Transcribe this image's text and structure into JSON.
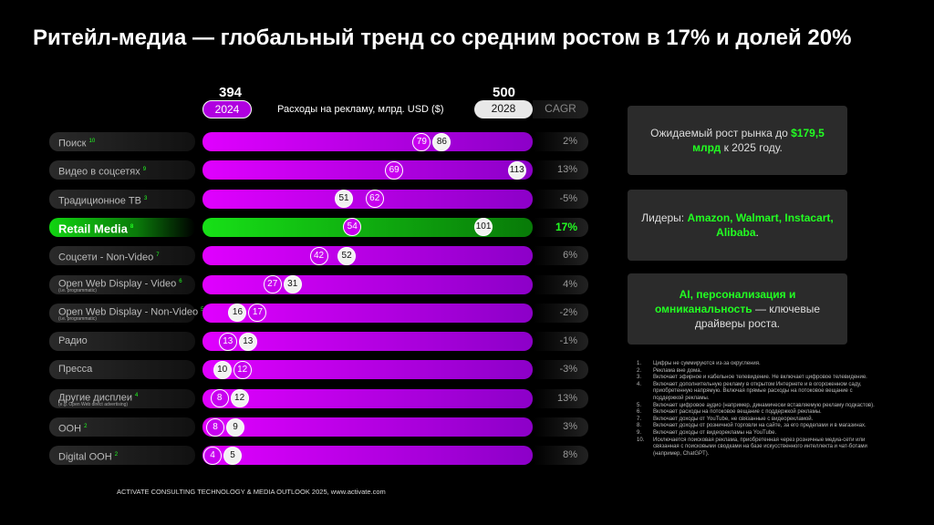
{
  "title": "Ритейл-медиа — глобальный тренд со средним ростом в 17% и долей 20%",
  "chart_data": {
    "type": "bar",
    "title": "Расходы на рекламу, млрд. USD ($)",
    "totals": {
      "2024": "394",
      "2028": "500"
    },
    "years": [
      "2024",
      "2028"
    ],
    "cagr_label": "CAGR",
    "categories": [
      "Поиск",
      "Видео в соцсетях",
      "Традиционное ТВ",
      "Retail Media",
      "Соцсети - Non-Video",
      "Open Web Display - Video",
      "Open Web Display - Non-Video",
      "Радио",
      "Пресса",
      "Другие дисплеи",
      "OOH",
      "Digital OOH"
    ],
    "subs": [
      "",
      "",
      "",
      "",
      "",
      "(i.e. programmatic)",
      "(i.e. programmatic)",
      "",
      "",
      "(e.g. Open Web direct advertising)",
      "",
      ""
    ],
    "notes": [
      "10",
      "9",
      "3",
      "8",
      "7",
      "6",
      "5",
      "",
      "",
      "4",
      "2",
      "2"
    ],
    "series": [
      {
        "name": "2024",
        "values": [
          79,
          69,
          62,
          54,
          42,
          27,
          17,
          13,
          12,
          8,
          8,
          4
        ]
      },
      {
        "name": "2028",
        "values": [
          86,
          113,
          51,
          101,
          52,
          31,
          16,
          13,
          10,
          12,
          9,
          5
        ]
      }
    ],
    "cagr": [
      "2%",
      "13%",
      "-5%",
      "17%",
      "6%",
      "4%",
      "-2%",
      "-1%",
      "-3%",
      "13%",
      "3%",
      "8%"
    ],
    "highlight": "Retail Media",
    "colors": {
      "bar": "#e000ff",
      "highlight": "#17e017"
    }
  },
  "boxes": {
    "b1": {
      "pre": "Ожидаемый рост рынка до ",
      "hl": "$179,5 млрд",
      "post": " к 2025 году."
    },
    "b2": {
      "pre": "Лидеры: ",
      "hl": "Amazon, Walmart, Instacart, Alibaba",
      "post": "."
    },
    "b3": {
      "hl": "AI, персонализация и омниканальность",
      "post": " — ключевые драйверы роста."
    }
  },
  "footnotes": [
    "Цифры не суммируются из-за округления.",
    "Реклама вне дома.",
    "Включает эфирное и кабельное телевидение. Не включает цифровое телевидение.",
    "Включает дополнительную рекламу в открытом Интернете и в огороженном саду, приобретенную напрямую. Включая прямые расходы на потоковое вещание с поддержкой рекламы.",
    "Включает цифровое аудио (например, динамически вставляемую рекламу подкастов).",
    "Включает расходы на потоковое вещание с поддержкой рекламы.",
    "Включает доходы от YouTube, не связанные с видеорекламой.",
    "Включает доходы от розничной торговли на сайте, за его пределами и в магазинах.",
    "Включает доходы от видеорекламы на YouTube.",
    "Исключается поисковая реклама, приобретенная через розничные медиа-сети или связанная с поисковыми сводками на базе искусственного интеллекта и чат-ботами (например, ChatGPT)."
  ],
  "footer": "ACTIVATE CONSULTING TECHNOLOGY & MEDIA OUTLOOK 2025, www.activate.com"
}
